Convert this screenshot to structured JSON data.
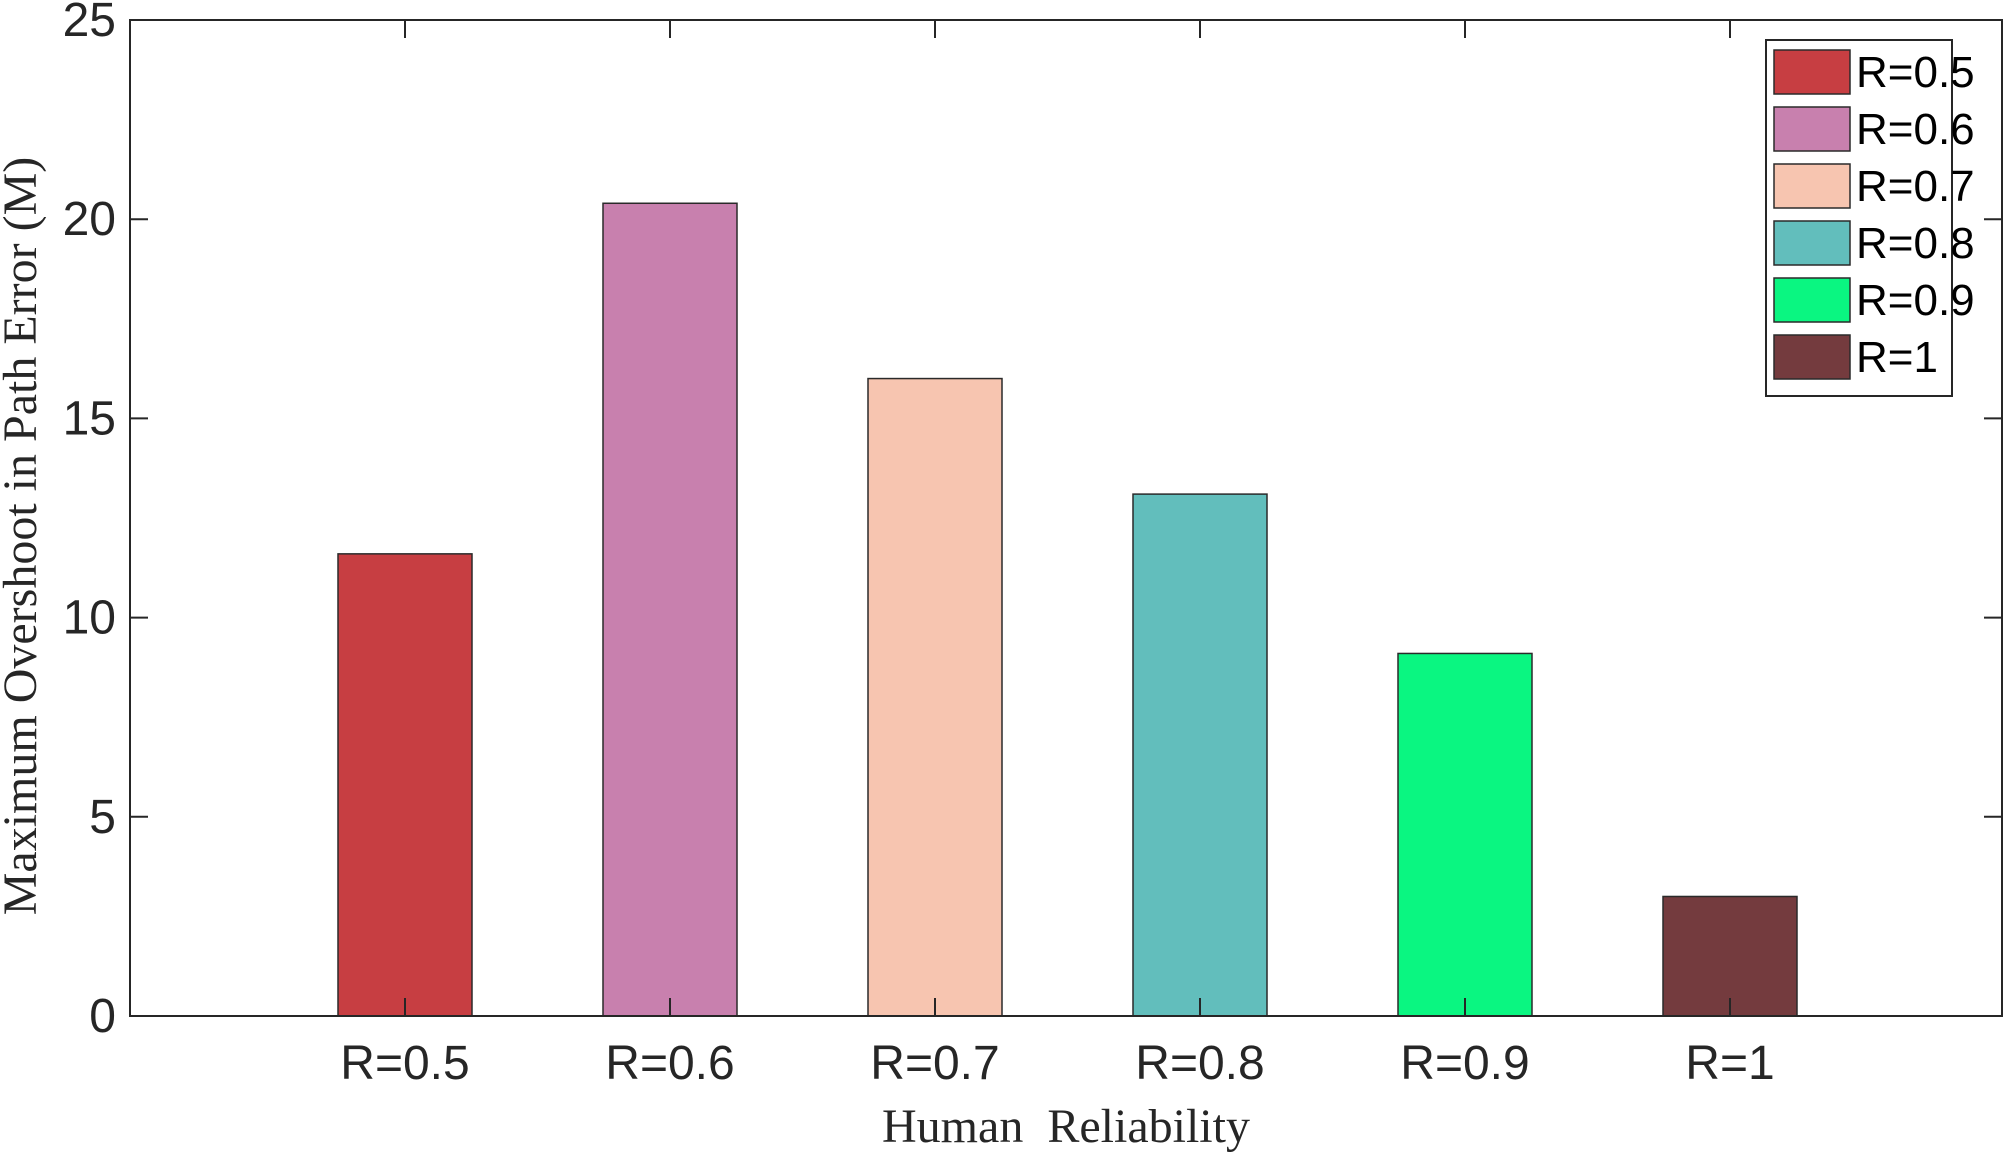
{
  "chart_data": {
    "type": "bar",
    "categories": [
      "R=0.5",
      "R=0.6",
      "R=0.7",
      "R=0.8",
      "R=0.9",
      "R=1"
    ],
    "values": [
      11.6,
      20.4,
      16.0,
      13.1,
      9.1,
      3.0
    ],
    "colors": [
      "#c73e42",
      "#c880ae",
      "#f7c5b0",
      "#62bebc",
      "#0af681",
      "#743b3e"
    ],
    "xlabel": "Human  Reliability",
    "ylabel": "Maximum Overshoot in Path Error (M)",
    "ylim": [
      0,
      25
    ],
    "yticks": [
      0,
      5,
      10,
      15,
      20,
      25
    ],
    "grid": false,
    "legend": {
      "placement": "top-right",
      "entries": [
        "R=0.5",
        "R=0.6",
        "R=0.7",
        "R=0.8",
        "R=0.9",
        "R=1"
      ]
    }
  }
}
